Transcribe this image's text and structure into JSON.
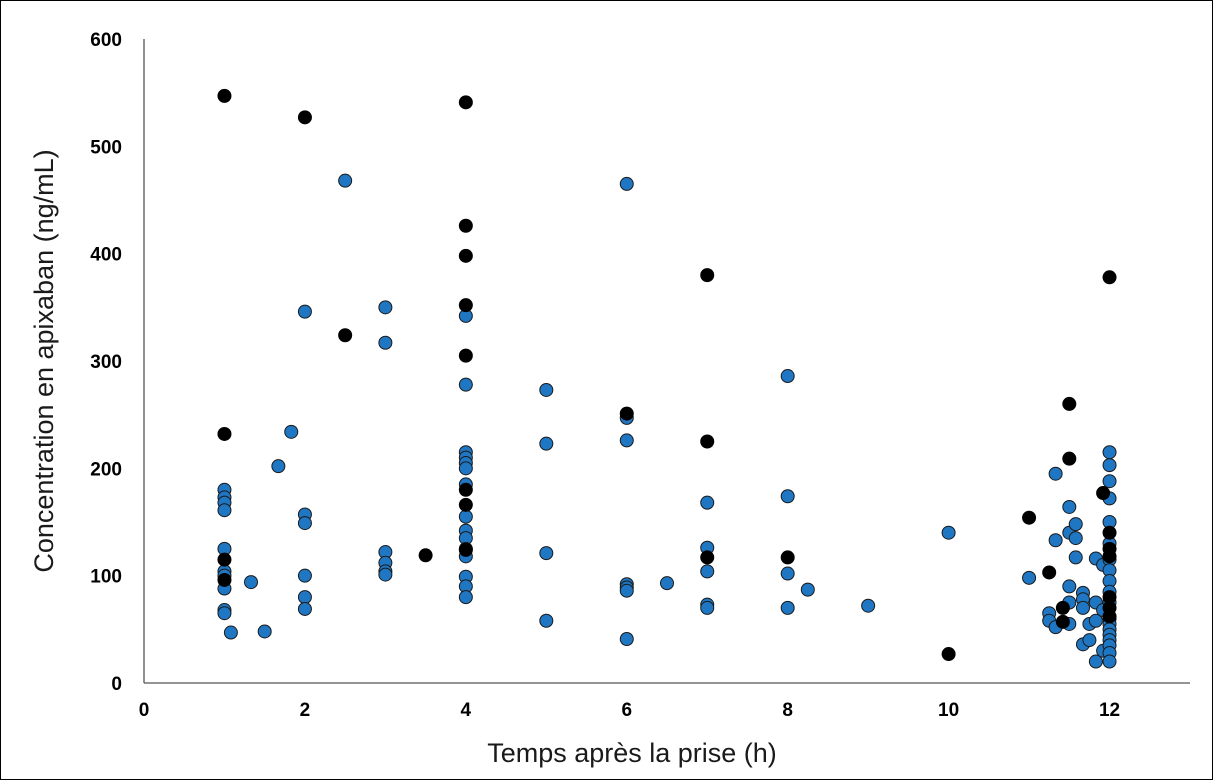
{
  "chart_data": {
    "type": "scatter",
    "title": "",
    "xlabel": "Temps après la prise (h)",
    "ylabel": "Concentration en apixaban (ng/mL)",
    "xlim": [
      0,
      13
    ],
    "ylim": [
      0,
      600
    ],
    "x_ticks": [
      0,
      2,
      4,
      6,
      8,
      10,
      12
    ],
    "y_ticks": [
      0,
      100,
      200,
      300,
      400,
      500,
      600
    ],
    "x_tick_labels": [
      "0",
      "2",
      "4",
      "6",
      "8",
      "10",
      "12"
    ],
    "y_tick_labels": [
      "0",
      "100",
      "200",
      "300",
      "400",
      "500",
      "600"
    ],
    "grid": false,
    "legend": "none",
    "series": [
      {
        "color": "#1f77c4",
        "edge": "#1a1a1a",
        "points": [
          [
            1,
            180
          ],
          [
            1,
            173
          ],
          [
            1,
            168
          ],
          [
            1,
            161
          ],
          [
            1,
            125
          ],
          [
            1,
            104
          ],
          [
            1,
            100
          ],
          [
            1,
            88
          ],
          [
            1,
            68
          ],
          [
            1,
            65
          ],
          [
            1.08,
            47
          ],
          [
            1.33,
            94
          ],
          [
            1.5,
            48
          ],
          [
            1.67,
            202
          ],
          [
            1.83,
            234
          ],
          [
            2,
            346
          ],
          [
            2,
            157
          ],
          [
            2,
            149
          ],
          [
            2,
            100
          ],
          [
            2,
            80
          ],
          [
            2,
            69
          ],
          [
            2.5,
            468
          ],
          [
            3,
            350
          ],
          [
            3,
            317
          ],
          [
            3,
            122
          ],
          [
            3,
            112
          ],
          [
            3,
            104
          ],
          [
            3,
            101
          ],
          [
            4,
            342
          ],
          [
            4,
            278
          ],
          [
            4,
            215
          ],
          [
            4,
            210
          ],
          [
            4,
            205
          ],
          [
            4,
            200
          ],
          [
            4,
            185
          ],
          [
            4,
            155
          ],
          [
            4,
            142
          ],
          [
            4,
            135
          ],
          [
            4,
            125
          ],
          [
            4,
            118
          ],
          [
            4,
            99
          ],
          [
            4,
            90
          ],
          [
            4,
            80
          ],
          [
            5,
            273
          ],
          [
            5,
            223
          ],
          [
            5,
            121
          ],
          [
            5,
            58
          ],
          [
            6,
            465
          ],
          [
            6,
            247
          ],
          [
            6,
            226
          ],
          [
            6,
            92
          ],
          [
            6,
            89
          ],
          [
            6,
            86
          ],
          [
            6,
            41
          ],
          [
            6.5,
            93
          ],
          [
            7,
            168
          ],
          [
            7,
            126
          ],
          [
            7,
            104
          ],
          [
            7,
            73
          ],
          [
            7,
            70
          ],
          [
            8,
            286
          ],
          [
            8,
            174
          ],
          [
            8,
            102
          ],
          [
            8,
            70
          ],
          [
            8.25,
            87
          ],
          [
            9,
            72
          ],
          [
            10,
            140
          ],
          [
            11,
            98
          ],
          [
            11.25,
            65
          ],
          [
            11.25,
            58
          ],
          [
            11.33,
            195
          ],
          [
            11.33,
            133
          ],
          [
            11.33,
            52
          ],
          [
            11.5,
            164
          ],
          [
            11.5,
            140
          ],
          [
            11.5,
            90
          ],
          [
            11.5,
            75
          ],
          [
            11.5,
            55
          ],
          [
            11.58,
            148
          ],
          [
            11.58,
            135
          ],
          [
            11.58,
            117
          ],
          [
            11.67,
            84
          ],
          [
            11.67,
            78
          ],
          [
            11.67,
            70
          ],
          [
            11.67,
            36
          ],
          [
            11.75,
            55
          ],
          [
            11.75,
            40
          ],
          [
            11.83,
            116
          ],
          [
            11.83,
            75
          ],
          [
            11.83,
            58
          ],
          [
            11.83,
            20
          ],
          [
            11.92,
            110
          ],
          [
            11.92,
            68
          ],
          [
            11.92,
            30
          ],
          [
            12,
            215
          ],
          [
            12,
            203
          ],
          [
            12,
            188
          ],
          [
            12,
            172
          ],
          [
            12,
            150
          ],
          [
            12,
            130
          ],
          [
            12,
            115
          ],
          [
            12,
            105
          ],
          [
            12,
            95
          ],
          [
            12,
            85
          ],
          [
            12,
            75
          ],
          [
            12,
            60
          ],
          [
            12,
            55
          ],
          [
            12,
            50
          ],
          [
            12,
            45
          ],
          [
            12,
            40
          ],
          [
            12,
            35
          ],
          [
            12,
            28
          ],
          [
            12,
            20
          ]
        ]
      },
      {
        "color": "#000000",
        "edge": "#000000",
        "points": [
          [
            1,
            547
          ],
          [
            1,
            232
          ],
          [
            1,
            115
          ],
          [
            1,
            96
          ],
          [
            2,
            527
          ],
          [
            2.5,
            324
          ],
          [
            3.5,
            119
          ],
          [
            4,
            541
          ],
          [
            4,
            426
          ],
          [
            4,
            398
          ],
          [
            4,
            352
          ],
          [
            4,
            305
          ],
          [
            4,
            180
          ],
          [
            4,
            166
          ],
          [
            4,
            124
          ],
          [
            6,
            251
          ],
          [
            7,
            380
          ],
          [
            7,
            225
          ],
          [
            7,
            117
          ],
          [
            8,
            117
          ],
          [
            10,
            27
          ],
          [
            11,
            154
          ],
          [
            11.25,
            103
          ],
          [
            11.42,
            70
          ],
          [
            11.42,
            57
          ],
          [
            11.5,
            260
          ],
          [
            11.5,
            209
          ],
          [
            11.92,
            177
          ],
          [
            12,
            378
          ],
          [
            12,
            140
          ],
          [
            12,
            125
          ],
          [
            12,
            118
          ],
          [
            12,
            80
          ],
          [
            12,
            70
          ],
          [
            12,
            62
          ]
        ]
      }
    ]
  }
}
